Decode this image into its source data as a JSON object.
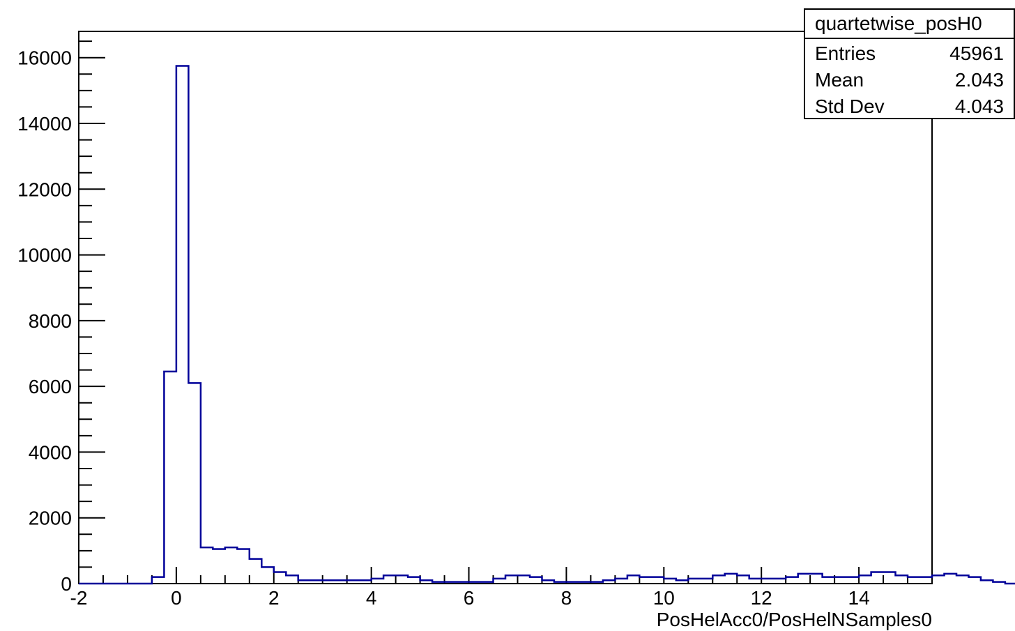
{
  "chart_data": {
    "type": "histogram",
    "title": "",
    "xlabel": "PosHelAcc0/PosHelNSamples0",
    "ylabel": "",
    "xlim": [
      -2,
      15.5
    ],
    "ylim": [
      0,
      16800
    ],
    "bin_edges_start": -2,
    "bin_width": 0.25,
    "values": [
      0,
      0,
      0,
      0,
      0,
      0,
      200,
      6450,
      15750,
      6100,
      1100,
      1050,
      1100,
      1050,
      750,
      500,
      350,
      250,
      100,
      100,
      100,
      100,
      100,
      100,
      150,
      250,
      250,
      200,
      100,
      50,
      50,
      50,
      50,
      50,
      150,
      250,
      250,
      200,
      100,
      50,
      50,
      50,
      50,
      100,
      150,
      250,
      200,
      200,
      150,
      100,
      150,
      150,
      250,
      300,
      250,
      150,
      150,
      150,
      200,
      300,
      300,
      200,
      200,
      200,
      250,
      350,
      350,
      250,
      200,
      200,
      250,
      300,
      250,
      200,
      100,
      50,
      0,
      0,
      0,
      0,
      0,
      0
    ],
    "xticks": [
      "-2",
      "0",
      "2",
      "4",
      "6",
      "8",
      "10",
      "12",
      "14"
    ],
    "yticks": [
      "0",
      "2000",
      "4000",
      "6000",
      "8000",
      "10000",
      "12000",
      "14000",
      "16000"
    ],
    "line_color": "#000099",
    "grid": false,
    "stats": {
      "name": "quartetwise_posH0",
      "rows": [
        {
          "label": "Entries",
          "value": "45961"
        },
        {
          "label": "Mean",
          "value": "2.043"
        },
        {
          "label": "Std Dev",
          "value": "4.043"
        }
      ]
    }
  }
}
